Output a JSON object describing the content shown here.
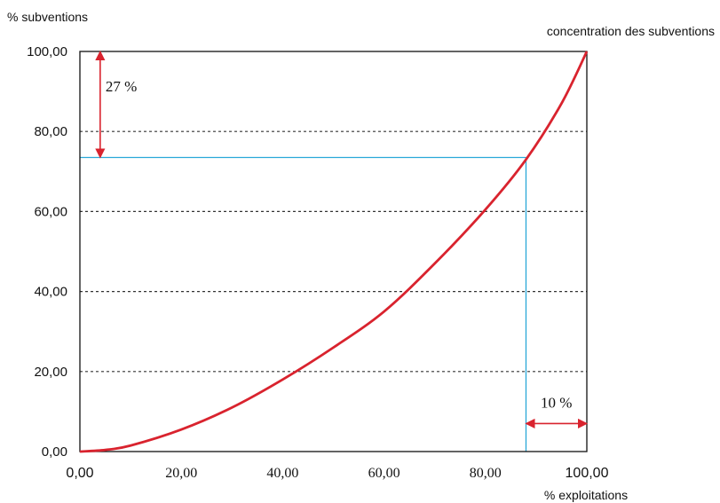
{
  "chart_data": {
    "type": "line",
    "title": "",
    "ylabel": "% subventions",
    "xlabel": "% exploitations",
    "xlim": [
      0,
      100
    ],
    "ylim": [
      0,
      100
    ],
    "x_ticks": [
      "0,00",
      "20,00",
      "40,00",
      "60,00",
      "80,00",
      "100,00"
    ],
    "y_ticks": [
      "0,00",
      "20,00",
      "40,00",
      "60,00",
      "80,00",
      "100,00"
    ],
    "x_tick_values": [
      0,
      20,
      40,
      60,
      80,
      100
    ],
    "y_tick_values": [
      0,
      20,
      40,
      60,
      80,
      100
    ],
    "grid": "horizontal dashed",
    "series": [
      {
        "name": "concentration des subventions",
        "color": "#d9232e",
        "x": [
          0,
          5,
          10,
          20,
          30,
          40,
          50,
          60,
          70,
          80,
          88,
          95,
          100
        ],
        "y": [
          0,
          0.4,
          1.5,
          5.5,
          11.0,
          18.0,
          26.0,
          35.0,
          47.0,
          60.5,
          73.0,
          87.0,
          100
        ]
      }
    ],
    "reference_point": {
      "x": 88,
      "y": 73.5,
      "color": "#29a8d8"
    },
    "annotations": [
      {
        "text": "27 %",
        "from": 73.5,
        "to": 100,
        "axis": "y",
        "at_x": 4,
        "color": "#d9232e"
      },
      {
        "text": "10 %",
        "from": 88,
        "to": 100,
        "axis": "x",
        "at_y": 7,
        "color": "#d9232e"
      }
    ]
  }
}
